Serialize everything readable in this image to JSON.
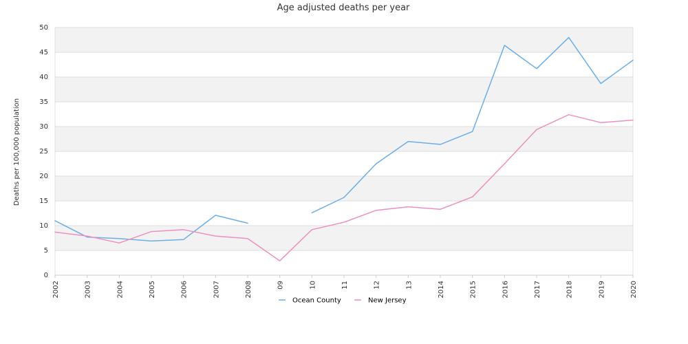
{
  "chart_data": {
    "type": "line",
    "title": "Age adjusted deaths per year",
    "xlabel": "",
    "ylabel": "Deaths per 100,000 population",
    "ylim": [
      0,
      50
    ],
    "y_ticks": [
      "0",
      "5",
      "10",
      "15",
      "20",
      "25",
      "30",
      "35",
      "40",
      "45",
      "50"
    ],
    "categories": [
      "2002",
      "2003",
      "2004",
      "2005",
      "2006",
      "2007",
      "2008",
      "09",
      "10",
      "11",
      "12",
      "13",
      "2014",
      "2015",
      "2016",
      "2017",
      "2018",
      "2019",
      "2020"
    ],
    "grid": "horizontal bands",
    "legend_position": "bottom",
    "series": [
      {
        "name": "Ocean County",
        "color": "#6aaee8",
        "values": [
          11.0,
          7.7,
          7.4,
          6.9,
          7.2,
          12.1,
          10.5,
          null,
          12.6,
          15.7,
          22.5,
          27.0,
          26.4,
          29.0,
          46.4,
          41.7,
          48.0,
          38.7,
          43.4
        ]
      },
      {
        "name": "New Jersey",
        "color": "#ef8fbf",
        "values": [
          8.7,
          7.9,
          6.5,
          8.8,
          9.2,
          7.9,
          7.4,
          2.9,
          9.2,
          10.7,
          13.1,
          13.8,
          13.3,
          15.8,
          22.5,
          29.4,
          32.4,
          30.8,
          31.3
        ]
      }
    ]
  }
}
